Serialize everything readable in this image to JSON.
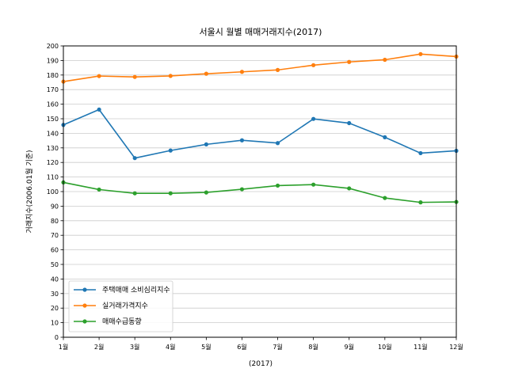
{
  "chart_data": {
    "type": "line",
    "title": "서울시 월별 매매거래지수(2017)",
    "xlabel": "(2017)",
    "ylabel": "거래지수(2006.01월 기준)",
    "categories": [
      "1월",
      "2월",
      "3월",
      "4월",
      "5월",
      "6월",
      "7월",
      "8월",
      "9월",
      "10월",
      "11월",
      "12월"
    ],
    "ylim": [
      0,
      200
    ],
    "yticks": [
      0,
      10,
      20,
      30,
      40,
      50,
      60,
      70,
      80,
      90,
      100,
      110,
      120,
      130,
      140,
      150,
      160,
      170,
      180,
      190,
      200
    ],
    "grid": "horizontal",
    "legend_position": "lower-left",
    "series": [
      {
        "name": "주택매매 소비심리지수",
        "color": "#1f77b4",
        "values": [
          145.8,
          156.3,
          123.0,
          128.2,
          132.4,
          135.2,
          133.3,
          149.9,
          147.0,
          137.3,
          126.4,
          128.0
        ]
      },
      {
        "name": "실거래가격지수",
        "color": "#ff7f0e",
        "values": [
          175.5,
          179.3,
          178.7,
          179.4,
          180.9,
          182.2,
          183.5,
          186.8,
          189.0,
          190.5,
          194.4,
          192.7
        ]
      },
      {
        "name": "매매수급동향",
        "color": "#2ca02c",
        "values": [
          106.3,
          101.4,
          98.8,
          98.8,
          99.4,
          101.6,
          104.1,
          104.8,
          102.2,
          95.6,
          92.6,
          92.9
        ]
      }
    ]
  }
}
